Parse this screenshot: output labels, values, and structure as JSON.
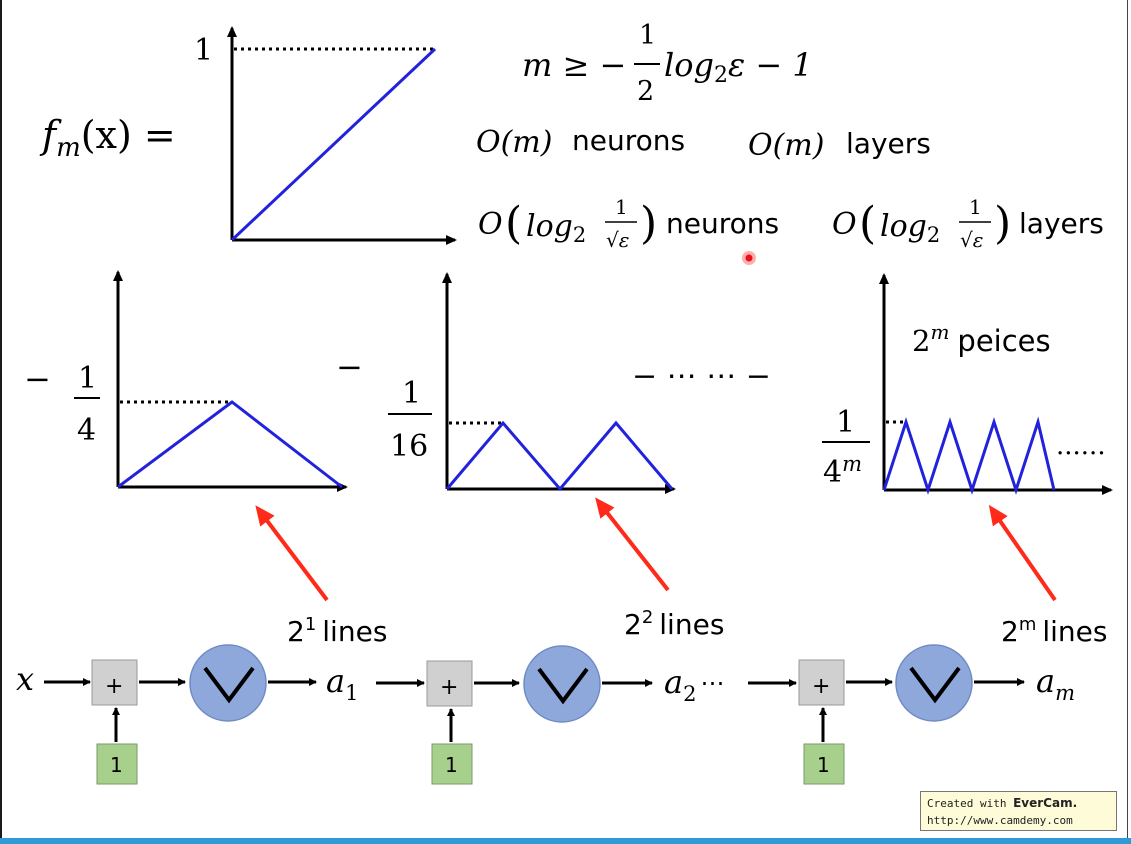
{
  "formulas": {
    "fm_lhs_f": "f",
    "fm_lhs_sub": "m",
    "fm_lhs_rest": "(x) =",
    "m_bound_lhs": "m ≥ −",
    "m_bound_num": "1",
    "m_bound_den": "2",
    "m_bound_log": "log",
    "m_bound_base": "2",
    "m_bound_tail": "ε − 1",
    "om_neurons_O": "O(m)",
    "om_neurons_word": "neurons",
    "om_layers_O": "O(m)",
    "om_layers_word": "layers",
    "olog_O": "O",
    "olog_log": "log",
    "olog_base": "2",
    "olog_num": "1",
    "olog_den": "√ε",
    "olog_neurons_word": "neurons",
    "olog_layers_word": "layers"
  },
  "plots": {
    "main_y_tick": "1",
    "p1_sign": "−",
    "p1_num": "1",
    "p1_den": "4",
    "p2_sign": "−",
    "p2_num": "1",
    "p2_den": "16",
    "ellipsis_mid": "− ⋯ ⋯ −",
    "pm_label_base": "2",
    "pm_label_exp": "m",
    "pm_label_word": "peices",
    "pm_num": "1",
    "pm_den_base": "4",
    "pm_den_exp": "m",
    "pm_trailing_dots": "······"
  },
  "network": {
    "input": "x",
    "plus": "+",
    "bias": "1",
    "a1_base": "a",
    "a1_sub": "1",
    "a2_base": "a",
    "a2_sub": "2",
    "a2_dots": "⋯",
    "am_base": "a",
    "am_sub": "m",
    "lines1_base": "2",
    "lines1_exp": "1",
    "lines1_word": "lines",
    "lines2_base": "2",
    "lines2_exp": "2",
    "lines2_word": "lines",
    "linesm_base": "2",
    "linesm_exp": "m",
    "linesm_word": "lines"
  },
  "watermark": {
    "line1_prefix": "Created with",
    "brand": "EverCam.",
    "url": "http://www.camdemy.com"
  },
  "colors": {
    "plot_line": "#2222dd",
    "red_arrow": "#ff2a1a",
    "relu_circle": "#8fa8dc",
    "plus_box": "#d0d0d0",
    "bias_box": "#a8d08d",
    "accent_bar": "#2f9bd6"
  }
}
